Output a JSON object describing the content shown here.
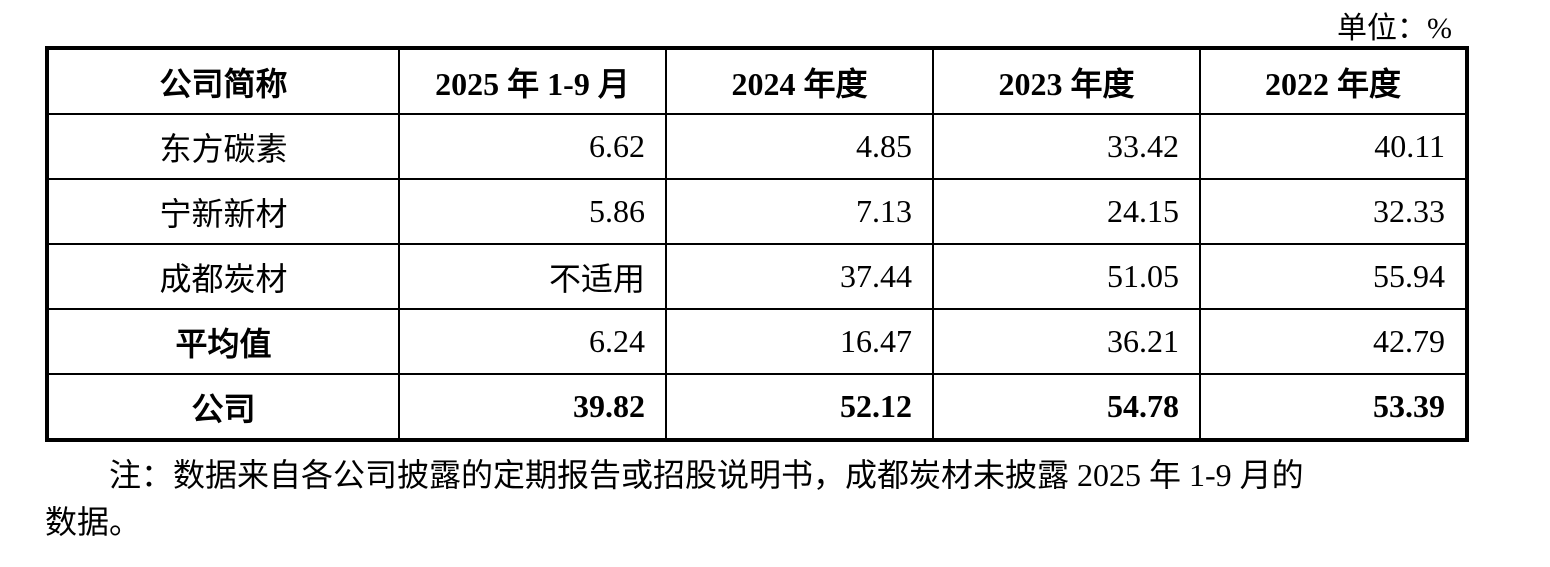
{
  "unit_label": "单位：%",
  "table": {
    "headers": [
      "公司简称",
      "2025 年 1-9 月",
      "2024 年度",
      "2023 年度",
      "2022 年度"
    ],
    "rows": [
      {
        "label": "东方碳素",
        "values": [
          "6.62",
          "4.85",
          "33.42",
          "40.11"
        ]
      },
      {
        "label": "宁新新材",
        "values": [
          "5.86",
          "7.13",
          "24.15",
          "32.33"
        ]
      },
      {
        "label": "成都炭材",
        "values": [
          "不适用",
          "37.44",
          "51.05",
          "55.94"
        ]
      },
      {
        "label": "平均值",
        "values": [
          "6.24",
          "16.47",
          "36.21",
          "42.79"
        ]
      },
      {
        "label": "公司",
        "values": [
          "39.82",
          "52.12",
          "54.78",
          "53.39"
        ]
      }
    ]
  },
  "note": {
    "line1": "注：数据来自各公司披露的定期报告或招股说明书，成都炭材未披露 2025 年 1-9 月的",
    "line2": "数据。"
  }
}
